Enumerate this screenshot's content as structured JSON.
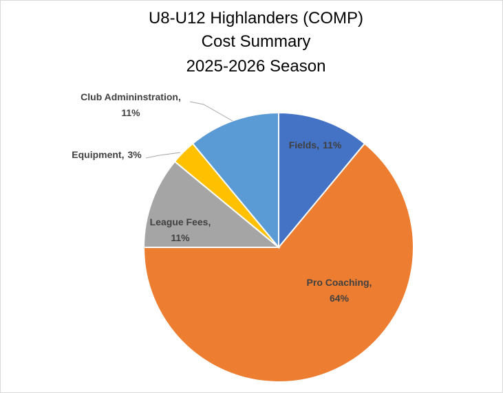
{
  "chart_data": {
    "type": "pie",
    "title": [
      "U8-U12 Highlanders (COMP)",
      "Cost Summary",
      "2025-2026 Season"
    ],
    "categories": [
      "Fields,",
      "Pro Coaching,",
      "League Fees,",
      "Equipment,",
      "Club Admininstration,"
    ],
    "values": [
      11,
      64,
      11,
      3,
      11
    ],
    "value_labels": [
      "11%",
      "64%",
      "11%",
      "3%",
      "11%"
    ],
    "colors": [
      "#4472c4",
      "#ed7d31",
      "#a5a5a5",
      "#ffc000",
      "#5b9bd5"
    ]
  }
}
